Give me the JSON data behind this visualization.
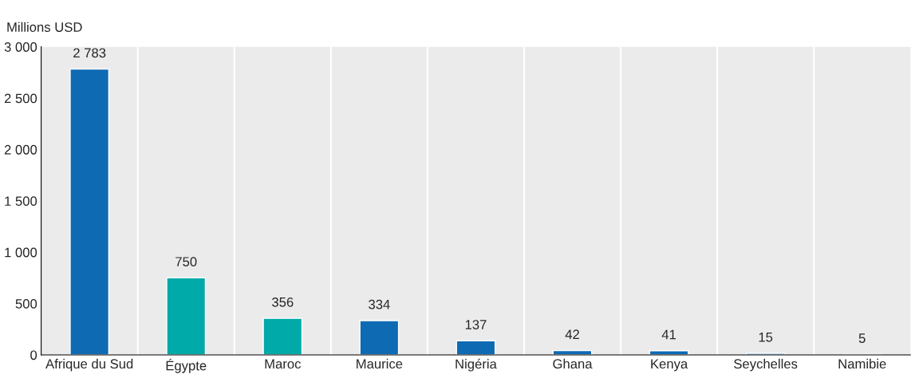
{
  "chart_data": {
    "type": "bar",
    "ylabel": "Millions USD",
    "categories": [
      "Afrique du Sud",
      "Égypte",
      "Maroc",
      "Maurice",
      "Nigéria",
      "Ghana",
      "Kenya",
      "Seychelles",
      "Namibie"
    ],
    "values": [
      2783,
      750,
      356,
      334,
      137,
      42,
      41,
      15,
      5
    ],
    "colors": [
      "#0f6ab4",
      "#00aaa8",
      "#00aaa8",
      "#0f6ab4",
      "#0f6ab4",
      "#0f6ab4",
      "#0f6ab4",
      "#0f6ab4",
      "#0f6ab4"
    ],
    "value_labels": [
      "2 783",
      "750",
      "356",
      "334",
      "137",
      "42",
      "41",
      "15",
      "5"
    ],
    "ylim": [
      0,
      3000
    ],
    "yticks": [
      0,
      {
        "value": 500,
        "label": "500"
      },
      {
        "value": 1000,
        "label": "1 000"
      },
      {
        "value": 1500,
        "label": "1 500"
      },
      {
        "value": 2000,
        "label": "2 000"
      },
      {
        "value": 2500,
        "label": "2 500"
      },
      {
        "value": 3000,
        "label": "3 000"
      }
    ],
    "grid": "x",
    "legend": false
  }
}
